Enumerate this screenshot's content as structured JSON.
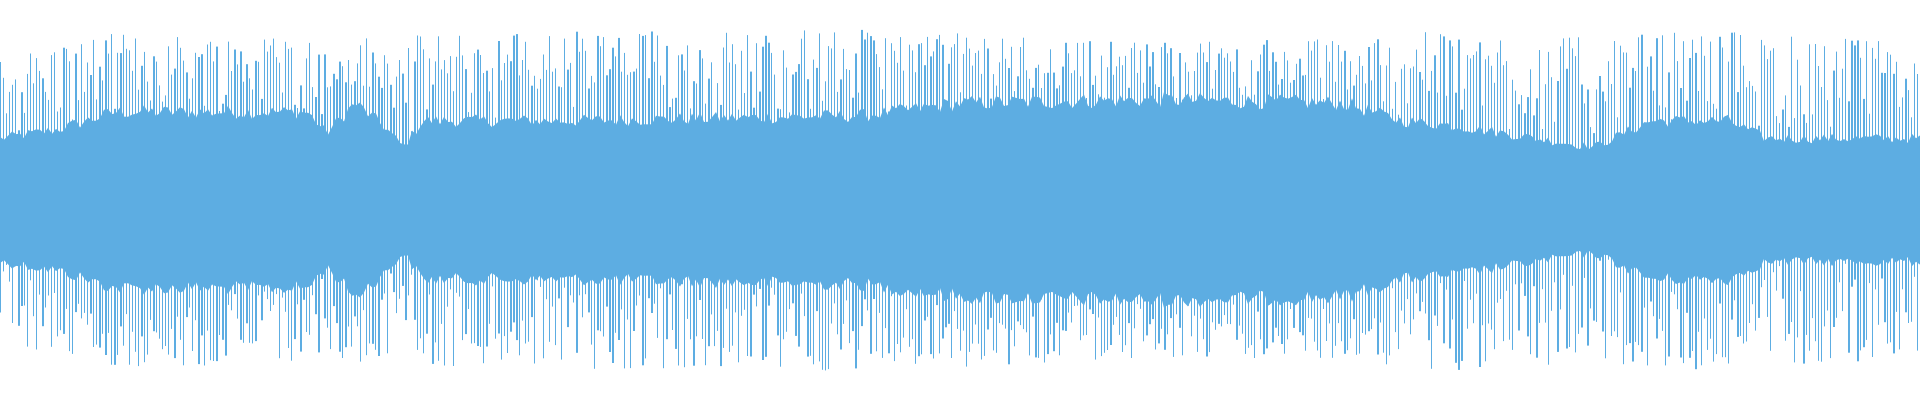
{
  "chart_data": {
    "type": "area",
    "title": "",
    "xlabel": "",
    "ylabel": "",
    "ylim": [
      -1,
      1
    ],
    "grid": false,
    "legend": "none",
    "color": "#5dade2",
    "background": "#ffffff",
    "envelope_positions": [
      0,
      0.03,
      0.06,
      0.16,
      0.17,
      0.185,
      0.2,
      0.21,
      0.22,
      0.3,
      0.45,
      0.5,
      0.6,
      0.7,
      0.73,
      0.76,
      0.8,
      0.83,
      0.86,
      0.9,
      0.92,
      1
    ],
    "dense_amplitude": [
      0.35,
      0.4,
      0.5,
      0.5,
      0.38,
      0.55,
      0.42,
      0.3,
      0.45,
      0.45,
      0.48,
      0.55,
      0.57,
      0.55,
      0.45,
      0.42,
      0.35,
      0.3,
      0.45,
      0.45,
      0.35,
      0.35
    ],
    "peak_amplitude": [
      0.85,
      0.9,
      0.95,
      0.95,
      0.85,
      0.95,
      0.9,
      0.9,
      0.95,
      0.97,
      0.97,
      0.95,
      0.9,
      0.92,
      0.95,
      0.97,
      0.95,
      0.92,
      0.95,
      0.97,
      0.95,
      0.9
    ]
  }
}
